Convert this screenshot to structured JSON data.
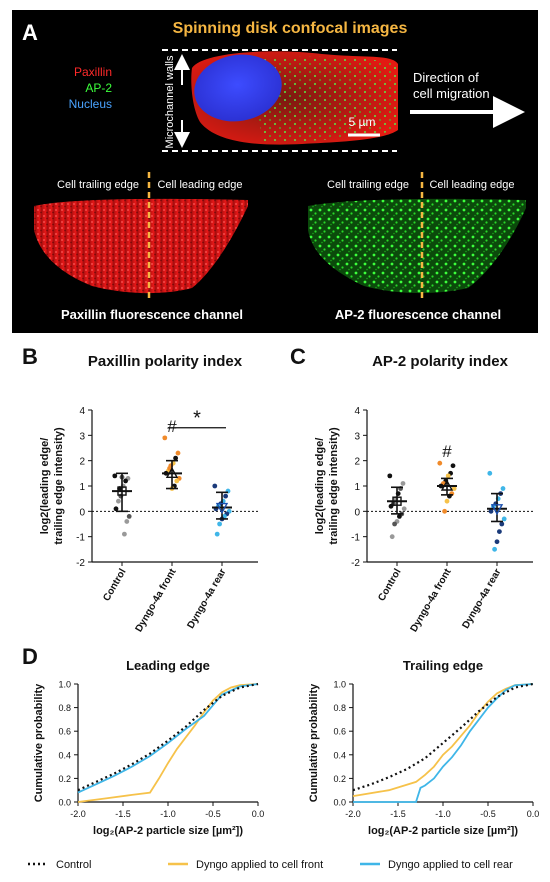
{
  "panel_a": {
    "label": "A",
    "title": "Spinning disk confocal images",
    "legend": [
      {
        "text": "Paxillin",
        "color": "#ff2a2a"
      },
      {
        "text": "AP-2",
        "color": "#3cff3c"
      },
      {
        "text": "Nucleus",
        "color": "#4aa3ff"
      }
    ],
    "walls_label": "Microchannel walls",
    "scalebar": "5 µm",
    "direction_line1": "Direction of",
    "direction_line2": "cell migration",
    "trailing_label": "Cell trailing edge",
    "leading_label": "Cell leading edge",
    "paxillin_caption": "Paxillin fluorescence channel",
    "ap2_caption": "AP-2 fluorescence channel",
    "colors": {
      "paxillin": "#e01818",
      "ap2": "#22d022",
      "nucleus": "#2233ee",
      "dashed_line": "#f5b642"
    }
  },
  "panel_b": {
    "label": "B",
    "title": "Paxillin polarity index"
  },
  "panel_c": {
    "label": "C",
    "title": "AP-2 polarity index"
  },
  "panel_d": {
    "label": "D"
  },
  "legend_d": [
    {
      "text": "Control",
      "color": "#111111",
      "style": "dotted"
    },
    {
      "text": "Dyngo applied to cell front",
      "color": "#f6c24a",
      "style": "solid"
    },
    {
      "text": "Dyngo applied to cell rear",
      "color": "#3fb6e8",
      "style": "solid"
    }
  ],
  "chart_data": [
    {
      "type": "scatter",
      "title": "Paxillin polarity index",
      "ylabel_line1": "log2(leading edge/",
      "ylabel_line2": "trailing edge intensity)",
      "categories": [
        "Control",
        "Dyngo-4a front",
        "Dyngo-4a rear"
      ],
      "ylim": [
        -2,
        4
      ],
      "yticks": [
        "-2",
        "-1",
        "0",
        "1",
        "2",
        "3",
        "4"
      ],
      "annotations": {
        "hash": "#",
        "star": "*"
      },
      "series": [
        {
          "category": "Control",
          "color": "#555555",
          "mean": 0.8,
          "sd_low": 0.0,
          "sd_high": 1.5,
          "points": [
            1.4,
            1.3,
            1.2,
            1.0,
            0.6,
            0.4,
            0.1,
            -0.2,
            -0.4,
            -0.9,
            1.35,
            0.9
          ],
          "point_colors": [
            "#111",
            "#999",
            "#111",
            "#999",
            "#555",
            "#999",
            "#111",
            "#555",
            "#999",
            "#999",
            "#555",
            "#111"
          ]
        },
        {
          "category": "Dyngo-4a front",
          "color": "#f39a3a",
          "mean": 1.5,
          "sd_low": 0.9,
          "sd_high": 2.0,
          "points": [
            2.9,
            2.3,
            2.1,
            1.9,
            1.8,
            1.6,
            1.5,
            1.3,
            1.2,
            1.0,
            0.9,
            1.7
          ],
          "point_colors": [
            "#f08a2a",
            "#f08a2a",
            "#111",
            "#f6c24a",
            "#f08a2a",
            "#f6c24a",
            "#111",
            "#f08a2a",
            "#f6c24a",
            "#111",
            "#f6c24a",
            "#f08a2a"
          ]
        },
        {
          "category": "Dyngo-4a rear",
          "color": "#1a4fae",
          "mean": 0.15,
          "sd_low": -0.3,
          "sd_high": 0.75,
          "points": [
            1.0,
            0.8,
            0.6,
            0.4,
            0.3,
            0.2,
            0.1,
            0.0,
            -0.1,
            -0.2,
            -0.3,
            -0.5,
            -0.9
          ],
          "point_colors": [
            "#1a3a7a",
            "#3fb6e8",
            "#1a3a7a",
            "#3fb6e8",
            "#1a3a7a",
            "#3fb6e8",
            "#1a3a7a",
            "#3fb6e8",
            "#1a3a7a",
            "#3fb6e8",
            "#1a3a7a",
            "#3fb6e8",
            "#3fb6e8"
          ]
        }
      ]
    },
    {
      "type": "scatter",
      "title": "AP-2 polarity index",
      "ylabel_line1": "log2(leading edge/",
      "ylabel_line2": "trailing edge intensity)",
      "categories": [
        "Control",
        "Dyngo-4a front",
        "Dyngo-4a rear"
      ],
      "ylim": [
        -2,
        4
      ],
      "yticks": [
        "-2",
        "-1",
        "0",
        "1",
        "2",
        "3",
        "4"
      ],
      "annotations": {
        "hash": "#"
      },
      "series": [
        {
          "category": "Control",
          "color": "#555555",
          "mean": 0.4,
          "sd_low": -0.1,
          "sd_high": 0.95,
          "points": [
            1.4,
            1.1,
            0.9,
            0.7,
            0.5,
            0.3,
            0.2,
            0.1,
            -0.1,
            -0.2,
            -0.4,
            -0.5,
            -1.0
          ],
          "point_colors": [
            "#111",
            "#999",
            "#555",
            "#111",
            "#999",
            "#555",
            "#111",
            "#999",
            "#555",
            "#111",
            "#999",
            "#555",
            "#999"
          ]
        },
        {
          "category": "Dyngo-4a front",
          "color": "#f39a3a",
          "mean": 1.0,
          "sd_low": 0.65,
          "sd_high": 1.3,
          "points": [
            1.9,
            1.8,
            1.5,
            1.4,
            1.2,
            1.1,
            1.0,
            0.9,
            0.7,
            0.6,
            0.4,
            0.0
          ],
          "point_colors": [
            "#f08a2a",
            "#111",
            "#111",
            "#f6c24a",
            "#111",
            "#f08a2a",
            "#111",
            "#f6c24a",
            "#f08a2a",
            "#111",
            "#f6c24a",
            "#f08a2a"
          ]
        },
        {
          "category": "Dyngo-4a rear",
          "color": "#1a4fae",
          "mean": 0.1,
          "sd_low": -0.4,
          "sd_high": 0.7,
          "points": [
            1.5,
            0.9,
            0.7,
            0.5,
            0.3,
            0.2,
            0.0,
            -0.3,
            -0.5,
            -0.8,
            -1.2,
            -1.5
          ],
          "point_colors": [
            "#3fb6e8",
            "#3fb6e8",
            "#1a3a7a",
            "#3fb6e8",
            "#1a3a7a",
            "#3fb6e8",
            "#1a3a7a",
            "#3fb6e8",
            "#1a3a7a",
            "#1a3a7a",
            "#1a3a7a",
            "#3fb6e8"
          ]
        }
      ]
    },
    {
      "type": "line",
      "title": "Leading edge",
      "xlabel": "log₂(AP-2 particle size [µm²])",
      "ylabel": "Cumulative probability",
      "xlim": [
        -2.0,
        0.0
      ],
      "ylim": [
        0.0,
        1.0
      ],
      "xticks": [
        "-2.0",
        "-1.5",
        "-1.0",
        "-0.5",
        "0.0"
      ],
      "yticks": [
        "0.0",
        "0.2",
        "0.4",
        "0.6",
        "0.8",
        "1.0"
      ],
      "series": [
        {
          "name": "Control",
          "color": "#111111",
          "style": "dotted",
          "x": [
            -2.0,
            -1.8,
            -1.6,
            -1.4,
            -1.2,
            -1.0,
            -0.8,
            -0.6,
            -0.4,
            -0.2,
            0.0
          ],
          "y": [
            0.1,
            0.17,
            0.24,
            0.32,
            0.41,
            0.52,
            0.64,
            0.78,
            0.9,
            0.97,
            1.0
          ]
        },
        {
          "name": "Dyngo applied to cell front",
          "color": "#f6c24a",
          "style": "solid",
          "x": [
            -2.0,
            -1.7,
            -1.4,
            -1.2,
            -1.1,
            -1.0,
            -0.9,
            -0.8,
            -0.7,
            -0.6,
            -0.5,
            -0.4,
            -0.3,
            -0.2,
            0.0
          ],
          "y": [
            0.0,
            0.03,
            0.06,
            0.08,
            0.2,
            0.33,
            0.45,
            0.55,
            0.65,
            0.76,
            0.86,
            0.93,
            0.97,
            0.99,
            1.0
          ]
        },
        {
          "name": "Dyngo applied to cell rear",
          "color": "#3fb6e8",
          "style": "solid",
          "x": [
            -2.0,
            -1.8,
            -1.6,
            -1.4,
            -1.2,
            -1.0,
            -0.8,
            -0.6,
            -0.5,
            -0.4,
            -0.2,
            0.0
          ],
          "y": [
            0.08,
            0.15,
            0.22,
            0.3,
            0.39,
            0.5,
            0.62,
            0.73,
            0.82,
            0.91,
            0.98,
            1.0
          ]
        }
      ]
    },
    {
      "type": "line",
      "title": "Trailing edge",
      "xlabel": "log₂(AP-2 particle size [µm²])",
      "ylabel": "Cumulative probability",
      "xlim": [
        -2.0,
        0.0
      ],
      "ylim": [
        0.0,
        1.0
      ],
      "xticks": [
        "-2.0",
        "-1.5",
        "-1.0",
        "-0.5",
        "0.0"
      ],
      "yticks": [
        "0.0",
        "0.2",
        "0.4",
        "0.6",
        "0.8",
        "1.0"
      ],
      "series": [
        {
          "name": "Control",
          "color": "#111111",
          "style": "dotted",
          "x": [
            -2.0,
            -1.8,
            -1.6,
            -1.4,
            -1.2,
            -1.0,
            -0.8,
            -0.6,
            -0.4,
            -0.2,
            0.0
          ],
          "y": [
            0.1,
            0.15,
            0.21,
            0.28,
            0.37,
            0.5,
            0.63,
            0.77,
            0.89,
            0.97,
            1.0
          ]
        },
        {
          "name": "Dyngo applied to cell front",
          "color": "#f6c24a",
          "style": "solid",
          "x": [
            -2.0,
            -1.6,
            -1.3,
            -1.2,
            -1.1,
            -1.0,
            -0.9,
            -0.8,
            -0.7,
            -0.6,
            -0.5,
            -0.4,
            -0.3,
            -0.2,
            0.0
          ],
          "y": [
            0.05,
            0.1,
            0.17,
            0.23,
            0.3,
            0.4,
            0.47,
            0.56,
            0.65,
            0.76,
            0.85,
            0.92,
            0.96,
            0.99,
            1.0
          ]
        },
        {
          "name": "Dyngo applied to cell rear",
          "color": "#3fb6e8",
          "style": "solid",
          "x": [
            -2.0,
            -1.3,
            -1.25,
            -1.2,
            -1.1,
            -1.0,
            -0.9,
            -0.8,
            -0.7,
            -0.6,
            -0.5,
            -0.4,
            -0.3,
            -0.2,
            0.0
          ],
          "y": [
            0.0,
            0.0,
            0.12,
            0.14,
            0.2,
            0.3,
            0.38,
            0.48,
            0.6,
            0.7,
            0.8,
            0.88,
            0.95,
            0.99,
            1.0
          ]
        }
      ]
    }
  ]
}
